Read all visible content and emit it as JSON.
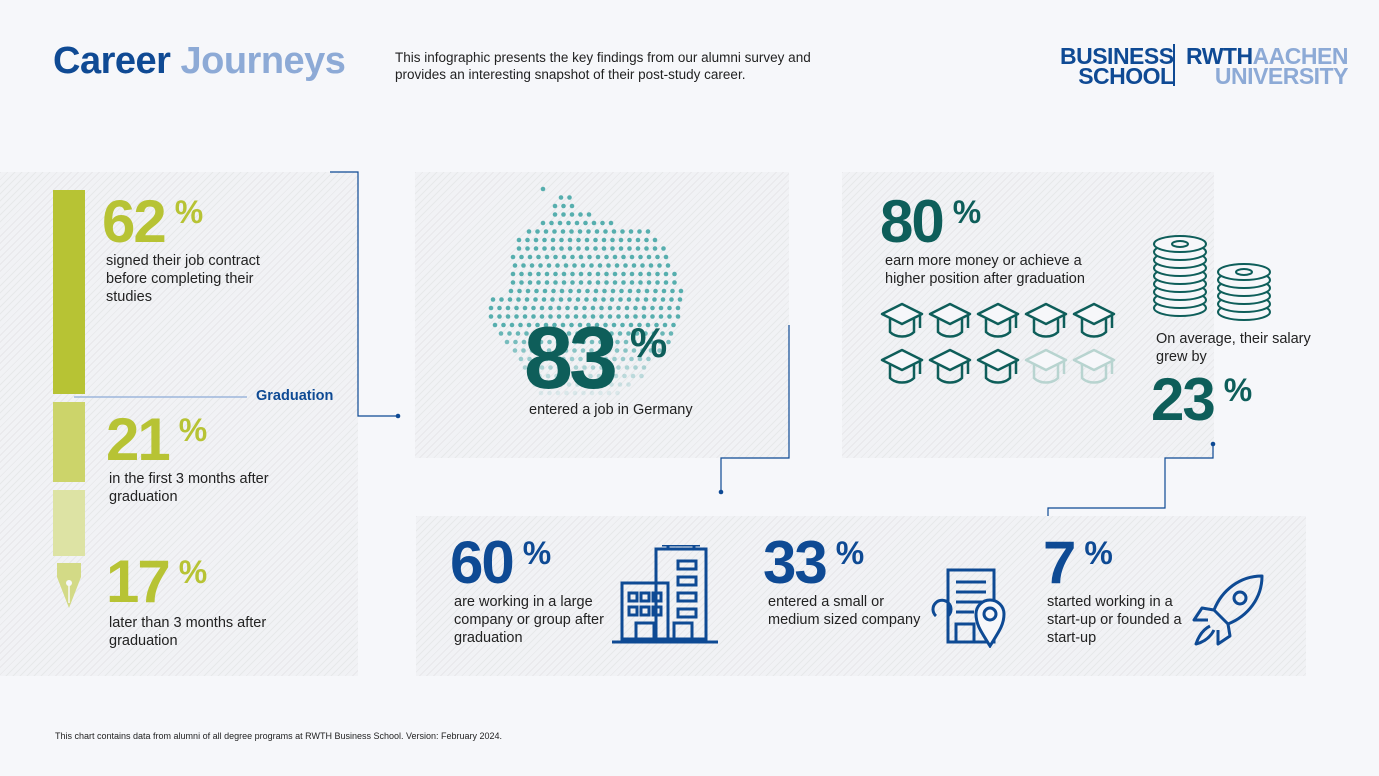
{
  "header": {
    "title_part1": "Career",
    "title_part2": "Journeys",
    "intro": "This infographic presents the key findings from our alumni survey and provides an interesting snapshot of their post-study career."
  },
  "logo": {
    "left_line1": "BUSINESS",
    "left_line2": "SCHOOL",
    "right_line1a": "RWTH",
    "right_line1b": "AACHEN",
    "right_line2": "UNIVERSITY"
  },
  "timing": {
    "graduation_label": "Graduation",
    "items": [
      {
        "value": "62",
        "unit": "%",
        "text": "signed their job contract before completing their studies"
      },
      {
        "value": "21",
        "unit": "%",
        "text": "in the first 3 months after graduation"
      },
      {
        "value": "17",
        "unit": "%",
        "text": "later than 3 months after graduation"
      }
    ]
  },
  "germany": {
    "value": "83",
    "unit": "%",
    "text": "entered a job in Germany"
  },
  "career": {
    "value": "80",
    "unit": "%",
    "text": "earn more money or achieve a higher position after graduation",
    "icons_total": 10,
    "icons_filled": 8,
    "salary_text": "On average, their salary grew by",
    "salary_value": "23",
    "salary_unit": "%"
  },
  "companies": [
    {
      "value": "60",
      "unit": "%",
      "text": "are working in a large company or group after graduation",
      "icon": "office-building-icon"
    },
    {
      "value": "33",
      "unit": "%",
      "text": "entered a small or medium sized company",
      "icon": "small-building-location-icon"
    },
    {
      "value": "7",
      "unit": "%",
      "text": "started working in a start-up or founded a start-up",
      "icon": "rocket-icon"
    }
  ],
  "footer": "This chart contains data from alumni of all degree programs at RWTH Business School. Version: February 2024.",
  "colors": {
    "navy": "#0e4a94",
    "light_blue": "#8daad6",
    "green": "#b7c334",
    "teal": "#0e5e5a"
  },
  "chart_data": {
    "type": "infographic",
    "title": "Career Journeys",
    "job_contract_timing": {
      "categories": [
        "signed their job contract before completing their studies",
        "in the first 3 months after graduation",
        "later than 3 months after graduation"
      ],
      "values": [
        62,
        21,
        17
      ]
    },
    "stats": [
      {
        "label": "entered a job in Germany",
        "value": 83
      },
      {
        "label": "earn more money or achieve a higher position after graduation",
        "value": 80
      },
      {
        "label": "On average, their salary grew by",
        "value": 23
      },
      {
        "label": "are working in a large company or group after graduation",
        "value": 60
      },
      {
        "label": "entered a small or medium sized company",
        "value": 33
      },
      {
        "label": "started working in a start-up or founded a start-up",
        "value": 7
      }
    ]
  }
}
